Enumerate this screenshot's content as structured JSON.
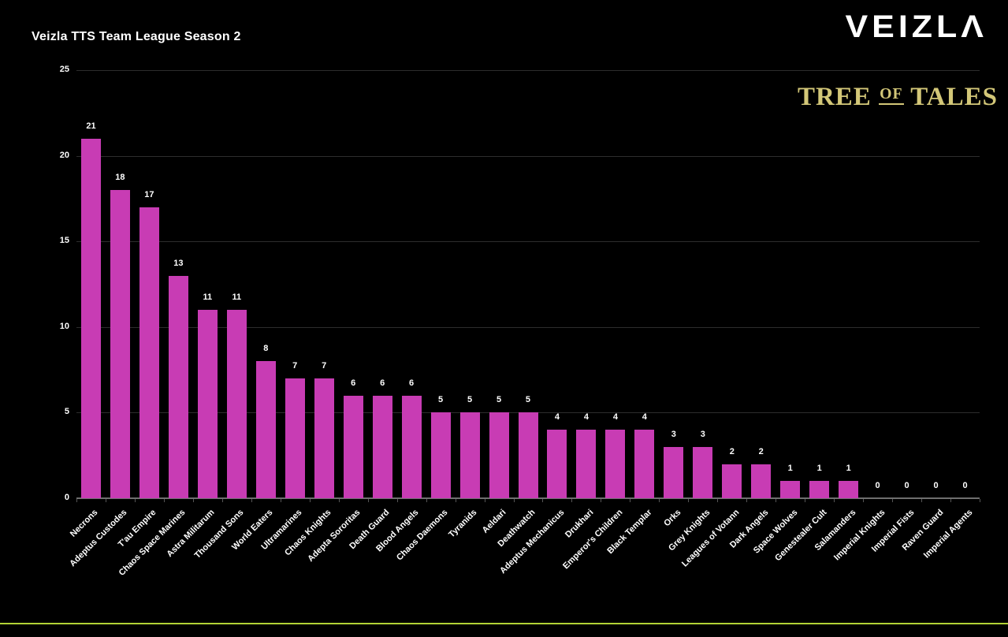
{
  "page": {
    "background": "#000000",
    "accent_line_color": "#b2d235"
  },
  "header": {
    "title": "Veizla TTS Team League Season 2",
    "brand": {
      "logo_text": "VEIZLA",
      "logo_display": "VEIZLΛ",
      "sub_word1": "TREE",
      "sub_word2": "OF",
      "sub_word3": "TALES",
      "sub_color": "#d3c778"
    }
  },
  "chart_data": {
    "type": "bar",
    "title": "Veizla TTS Team League Season 2",
    "categories": [
      "Necrons",
      "Adeptus Custodes",
      "T'au Empire",
      "Chaos Space Marines",
      "Astra Militarum",
      "Thousand Sons",
      "World Eaters",
      "Ultramarines",
      "Chaos Knights",
      "Adepta Sororitas",
      "Death Guard",
      "Blood Angels",
      "Chaos Daemons",
      "Tyranids",
      "Aeldari",
      "Deathwatch",
      "Adeptus Mechanicus",
      "Drukhari",
      "Emperor's Children",
      "Black Templar",
      "Orks",
      "Grey Knights",
      "Leagues of Votann",
      "Dark Angels",
      "Space Wolves",
      "Genestealer Cult",
      "Salamanders",
      "Imperial Knights",
      "Imperial Fists",
      "Raven Guard",
      "Imperial Agents"
    ],
    "values": [
      21,
      18,
      17,
      13,
      11,
      11,
      8,
      7,
      7,
      6,
      6,
      6,
      5,
      5,
      5,
      5,
      4,
      4,
      4,
      4,
      3,
      3,
      2,
      2,
      1,
      1,
      1,
      0,
      0,
      0,
      0
    ],
    "xlabel": "",
    "ylabel": "",
    "ylim": [
      0,
      25
    ],
    "yticks": [
      0,
      5,
      10,
      15,
      20,
      25
    ],
    "bar_color": "#c83cb4",
    "grid": true,
    "gridline_color": "#2d2d2d",
    "axis_line_color": "#6e6e6e",
    "value_labels": true,
    "legend": "none"
  }
}
